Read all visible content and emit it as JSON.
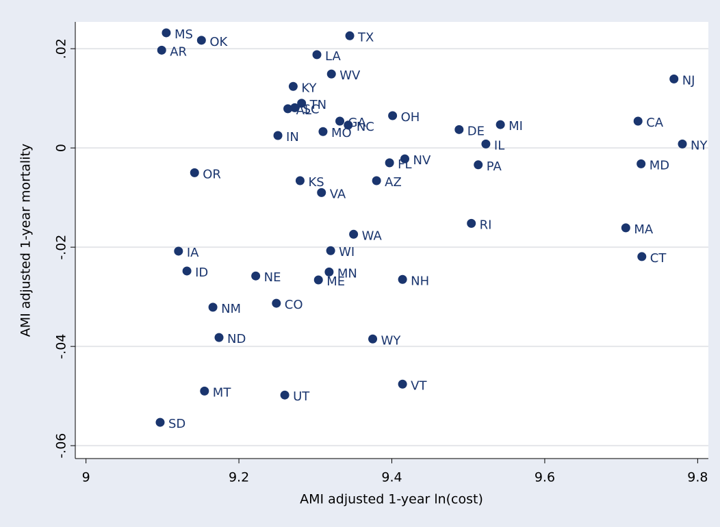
{
  "chart_data": {
    "type": "scatter",
    "xlabel": "AMI adjusted 1-year ln(cost)",
    "ylabel": "AMI adjusted 1-year mortality",
    "xlim": [
      8.986,
      9.814
    ],
    "ylim": [
      -0.0626,
      0.0254
    ],
    "xticks": [
      9,
      9.2,
      9.4,
      9.6,
      9.8
    ],
    "yticks": [
      {
        "value": -0.06,
        "label": "-.06"
      },
      {
        "value": -0.04,
        "label": "-.04"
      },
      {
        "value": -0.02,
        "label": "-.02"
      },
      {
        "value": 0,
        "label": "0"
      },
      {
        "value": 0.02,
        "label": ".02"
      }
    ],
    "grid": true,
    "x": [
      9.105,
      9.151,
      9.099,
      9.345,
      9.302,
      9.321,
      9.271,
      9.769,
      9.282,
      9.273,
      9.264,
      9.332,
      9.343,
      9.401,
      9.488,
      9.542,
      9.722,
      9.251,
      9.31,
      9.523,
      9.78,
      9.397,
      9.417,
      9.513,
      9.726,
      9.142,
      9.28,
      9.38,
      9.308,
      9.504,
      9.706,
      9.35,
      9.121,
      9.32,
      9.727,
      9.132,
      9.222,
      9.318,
      9.304,
      9.414,
      9.166,
      9.249,
      9.174,
      9.375,
      9.414,
      9.155,
      9.26,
      9.097
    ],
    "series": [
      {
        "color": "#1a356e",
        "values": [
          0.0232,
          0.0217,
          0.0197,
          0.0226,
          0.0188,
          0.0149,
          0.0124,
          0.0139,
          0.009,
          0.0081,
          0.0079,
          0.0054,
          0.0046,
          0.0065,
          0.0037,
          0.0047,
          0.0054,
          0.0025,
          0.0033,
          0.0008,
          0.0008,
          -0.003,
          -0.0022,
          -0.0034,
          -0.0032,
          -0.005,
          -0.0066,
          -0.0066,
          -0.009,
          -0.0152,
          -0.0161,
          -0.0174,
          -0.0208,
          -0.0207,
          -0.0219,
          -0.0248,
          -0.0258,
          -0.025,
          -0.0266,
          -0.0265,
          -0.0321,
          -0.0313,
          -0.0382,
          -0.0385,
          -0.0476,
          -0.049,
          -0.0498,
          -0.0553
        ],
        "point_labels": [
          "MS",
          "OK",
          "AR",
          "TX",
          "LA",
          "WV",
          "KY",
          "NJ",
          "TN",
          "SC",
          "AL",
          "GA",
          "NC",
          "OH",
          "DE",
          "MI",
          "CA",
          "IN",
          "MO",
          "IL",
          "NY",
          "FL",
          "NV",
          "PA",
          "MD",
          "OR",
          "KS",
          "AZ",
          "VA",
          "RI",
          "MA",
          "WA",
          "IA",
          "WI",
          "CT",
          "ID",
          "NE",
          "MN",
          "ME",
          "NH",
          "NM",
          "CO",
          "ND",
          "WY",
          "VT",
          "MT",
          "UT",
          "SD"
        ]
      }
    ]
  }
}
